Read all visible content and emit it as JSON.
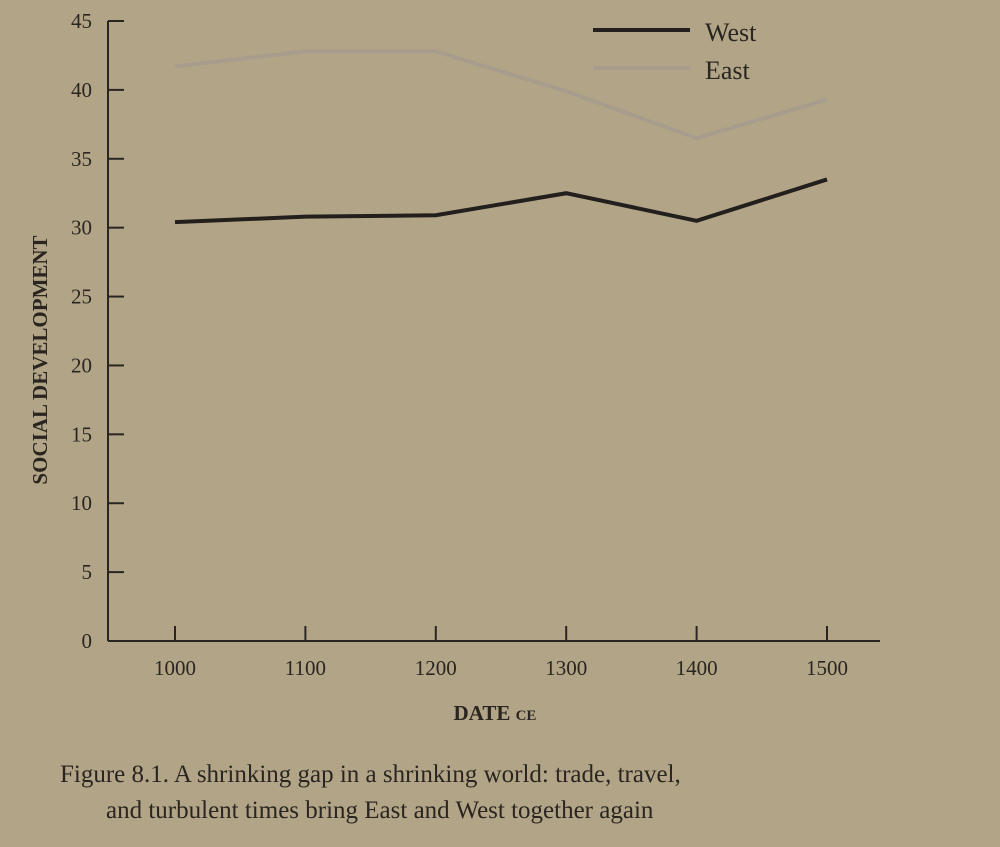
{
  "chart_data": {
    "type": "line",
    "title": "",
    "xlabel": "DATE",
    "xlabel_suffix": "CE",
    "ylabel": "SOCIAL DEVELOPMENT",
    "x": [
      1000,
      1100,
      1200,
      1300,
      1400,
      1500
    ],
    "x_tick_labels": [
      "1000",
      "1100",
      "1200",
      "1300",
      "1400",
      "1500"
    ],
    "y_tick_labels": [
      "0",
      "5",
      "10",
      "15",
      "20",
      "25",
      "30",
      "35",
      "40",
      "45"
    ],
    "ylim": [
      0,
      45
    ],
    "grid": false,
    "legend_position": "top-right",
    "series": [
      {
        "name": "West",
        "color": "#231f1c",
        "values": [
          30.4,
          30.8,
          30.9,
          32.5,
          30.5,
          33.5
        ]
      },
      {
        "name": "East",
        "color": "#a69d8c",
        "values": [
          41.7,
          42.8,
          42.8,
          39.9,
          36.5,
          39.3
        ]
      }
    ]
  },
  "caption": {
    "line1": "Figure 8.1. A shrinking gap in a shrinking world: trade, travel,",
    "line2": "and turbulent times bring East and West together again"
  }
}
